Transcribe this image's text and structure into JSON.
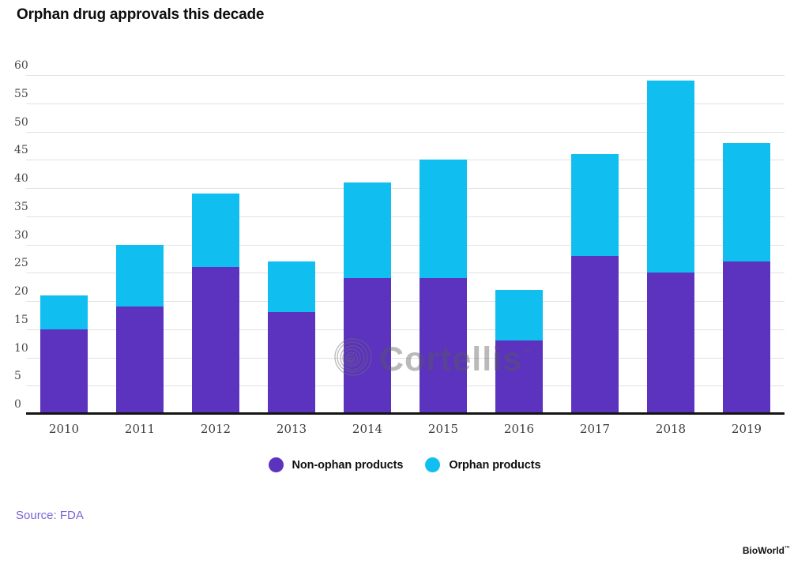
{
  "title": "Orphan drug approvals this decade",
  "watermark": {
    "label": "Cortellis",
    "tm": "™"
  },
  "legend": {
    "items": [
      {
        "label": "Non-ophan products",
        "color": "#5B33BE"
      },
      {
        "label": "Orphan products",
        "color": "#10BFF0"
      }
    ]
  },
  "source": {
    "label": "Source: FDA"
  },
  "brand": {
    "label": "BioWorld",
    "tm": "™"
  },
  "colors": {
    "non_orphan": "#5B33BE",
    "orphan": "#10BFF0",
    "grid": "#e1e1e1",
    "axis": "#141414",
    "source_text": "#7d64d8"
  },
  "chart_data": {
    "type": "bar",
    "stacked": true,
    "title": "Orphan drug approvals this decade",
    "xlabel": "",
    "ylabel": "",
    "categories": [
      "2010",
      "2011",
      "2012",
      "2013",
      "2014",
      "2015",
      "2016",
      "2017",
      "2018",
      "2019"
    ],
    "series": [
      {
        "name": "Non-ophan products",
        "color": "#5B33BE",
        "values": [
          15,
          19,
          26,
          18,
          24,
          24,
          13,
          28,
          25,
          27
        ]
      },
      {
        "name": "Orphan products",
        "color": "#10BFF0",
        "values": [
          6,
          11,
          13,
          9,
          17,
          21,
          9,
          18,
          34,
          21
        ]
      }
    ],
    "totals": [
      21,
      30,
      39,
      27,
      41,
      45,
      22,
      46,
      59,
      48
    ],
    "ylim": [
      0,
      60
    ],
    "ytick_step": 5,
    "grid": true,
    "legend_position": "bottom"
  }
}
